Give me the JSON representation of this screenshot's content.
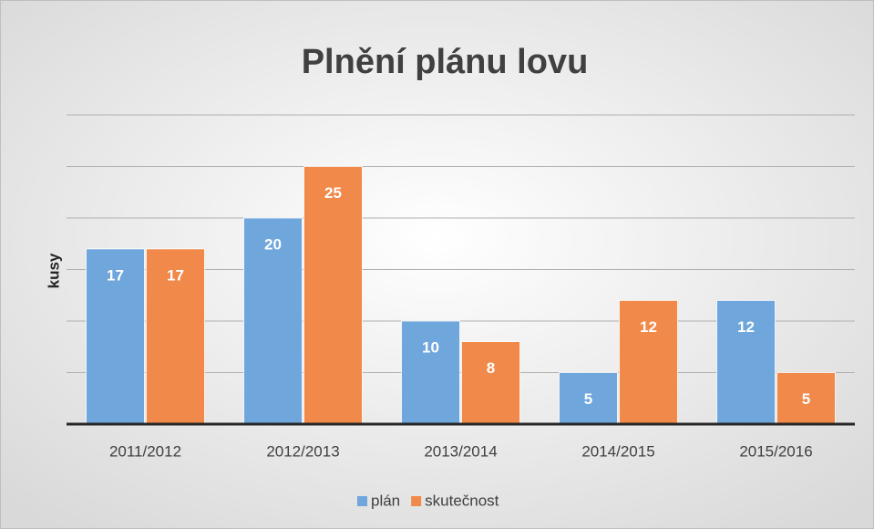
{
  "chart_data": {
    "type": "bar",
    "title": "Plnění plánu lovu",
    "y_label": "kusy",
    "categories": [
      "2011/2012",
      "2012/2013",
      "2013/2014",
      "2014/2015",
      "2015/2016"
    ],
    "series": [
      {
        "name": "plán",
        "color": "#6fa6db",
        "values": [
          17,
          20,
          10,
          5,
          12
        ]
      },
      {
        "name": "skutečnost",
        "color": "#f0894a",
        "values": [
          17,
          25,
          8,
          12,
          5
        ]
      }
    ],
    "ylim": [
      0,
      30
    ],
    "yticks": [
      0,
      5,
      10,
      15,
      20,
      25,
      30
    ],
    "grid": true,
    "legend": "bottom"
  }
}
